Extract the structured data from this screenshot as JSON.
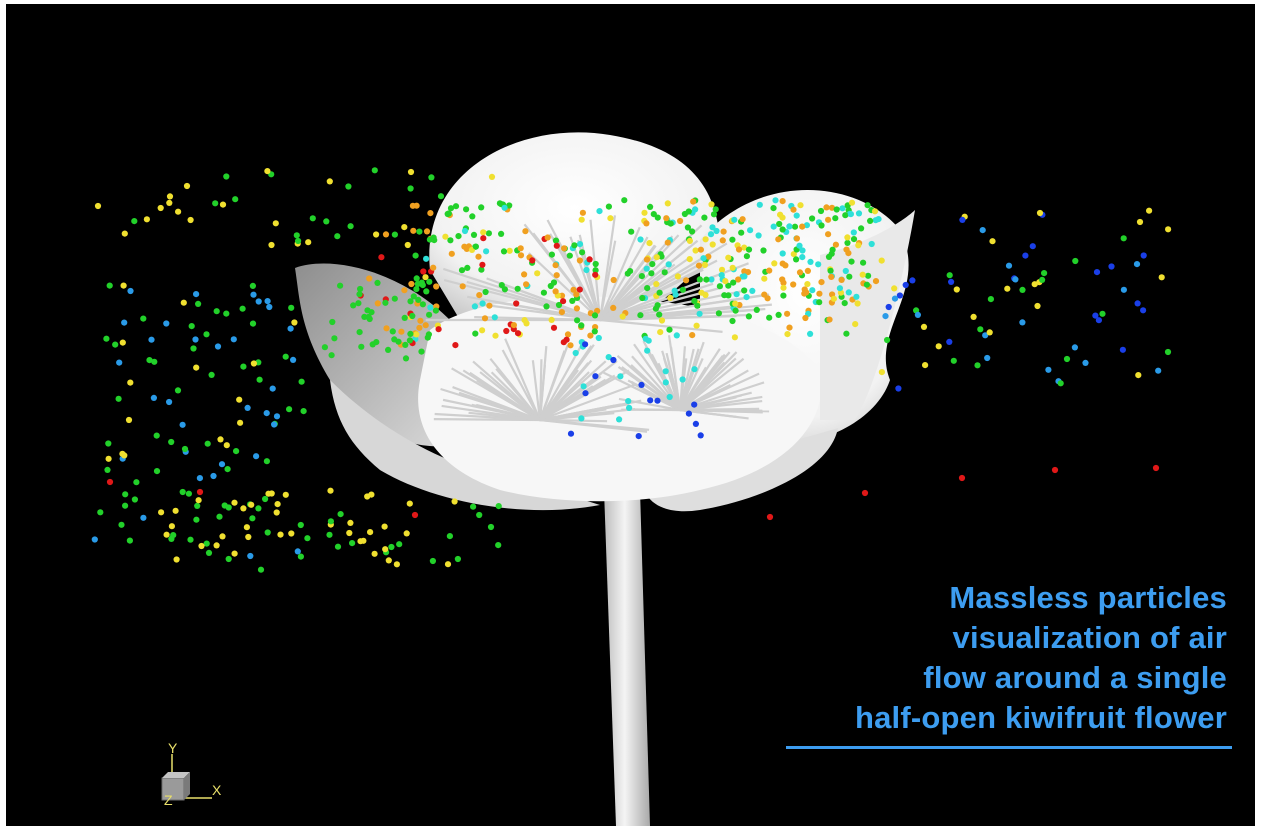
{
  "caption": {
    "line1": "Massless particles",
    "line2": "visualization of air",
    "line3": "flow around a single",
    "line4": "half-open kiwifruit flower",
    "color": "#3d9df0"
  },
  "axes_triad": {
    "y_label": "Y",
    "x_label": "X",
    "z_label": "Z",
    "color": "#e9e06a"
  },
  "particle_colors": {
    "yellow": "#f0e030",
    "green": "#22d12a",
    "cyan": "#2ee0d8",
    "blue": "#1a3fe8",
    "light_blue": "#2a9be8",
    "orange": "#f0a020",
    "red": "#e01818"
  }
}
